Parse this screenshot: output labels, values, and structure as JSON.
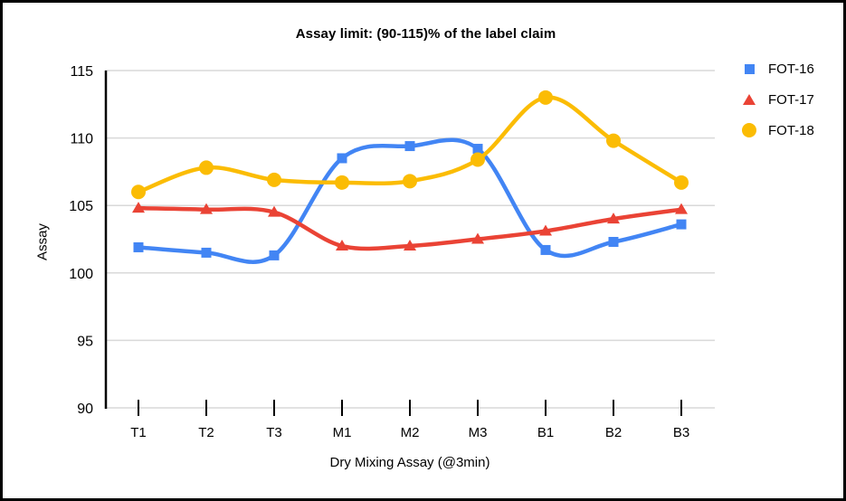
{
  "chart_data": {
    "type": "line",
    "title": "Assay limit: (90-115)% of the label claim",
    "xlabel": "Dry Mixing Assay (@3min)",
    "ylabel": "Assay",
    "categories": [
      "T1",
      "T2",
      "T3",
      "M1",
      "M2",
      "M3",
      "B1",
      "B2",
      "B3"
    ],
    "y_ticks": [
      90,
      95,
      100,
      105,
      110,
      115
    ],
    "ylim": [
      90,
      115
    ],
    "grid": true,
    "line_smoothing": true,
    "legend_position": "right",
    "colors": {
      "grid": "#d9d9d9",
      "axis": "#000000",
      "text": "#000000",
      "series_blue": "#4285F4",
      "series_red": "#EA4335",
      "series_yellow": "#FBBC04"
    },
    "series": [
      {
        "name": "FOT-16",
        "color": "#4285F4",
        "marker": "square",
        "values": [
          101.9,
          101.5,
          101.3,
          108.5,
          109.4,
          109.2,
          101.7,
          102.3,
          103.6
        ]
      },
      {
        "name": "FOT-17",
        "color": "#EA4335",
        "marker": "triangle",
        "values": [
          104.8,
          104.7,
          104.5,
          102.0,
          102.0,
          102.5,
          103.1,
          104.0,
          104.7
        ]
      },
      {
        "name": "FOT-18",
        "color": "#FBBC04",
        "marker": "circle",
        "values": [
          106.0,
          107.8,
          106.9,
          106.7,
          106.8,
          108.4,
          113.0,
          109.8,
          106.7
        ]
      }
    ]
  }
}
